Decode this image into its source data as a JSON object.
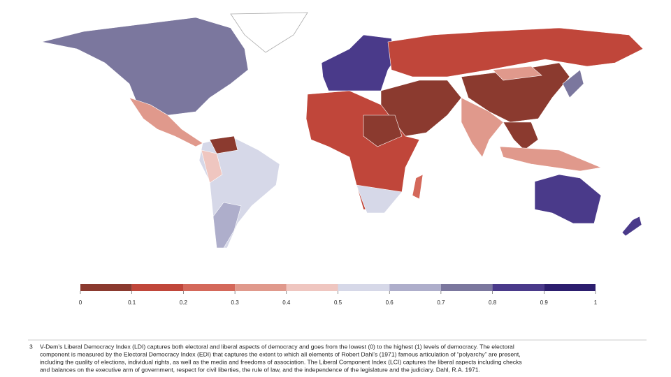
{
  "legend": {
    "bins": [
      0,
      0.1,
      0.2,
      0.3,
      0.4,
      0.5,
      0.6,
      0.7,
      0.8,
      0.9,
      1
    ],
    "colors": [
      "#8b3a2f",
      "#c0463a",
      "#d4685a",
      "#e0998c",
      "#efc6c0",
      "#d6d8e8",
      "#aeaecb",
      "#7b779e",
      "#4a3a8a",
      "#2c1e6e"
    ]
  },
  "footnote": {
    "number": "3",
    "lines": [
      "V-Dem’s Liberal Democracy Index (LDI) captures both electoral and liberal aspects of democracy and goes from the lowest (0) to the highest (1) levels of democracy. The electoral",
      "component is measured by the Electoral Democracy Index (EDI) that captures the extent to which all elements of Robert Dahl’s (1971) famous articulation of “polyarchy” are present,",
      "including the quality of elections, individual rights, as well as the media and freedoms of association. The Liberal Component Index (LCI) captures the liberal aspects including checks",
      "and balances on the executive arm of government, respect for civil liberties, the rule of law, and the independence of the legislature and the judiciary. Dahl, R.A. 1971."
    ]
  }
}
